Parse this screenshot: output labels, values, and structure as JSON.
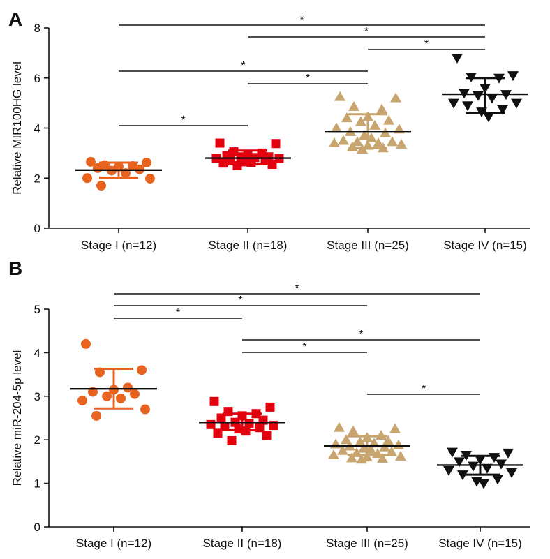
{
  "chart_data": [
    {
      "panel_label": "A",
      "type": "scatter",
      "ylabel": "Relative MIR100HG level",
      "ylim": [
        0,
        8
      ],
      "yticks": [
        "0",
        "2",
        "4",
        "6",
        "8"
      ],
      "categories": [
        "Stage I (n=12)",
        "Stage II (n=18)",
        "Stage III (n=25)",
        "Stage IV (n=15)"
      ],
      "series": [
        {
          "marker": "circle",
          "color": "#E8641E",
          "mean": 2.32,
          "sd_low": 2.02,
          "sd_high": 2.62,
          "points": [
            2.65,
            2.62,
            2.52,
            2.48,
            2.45,
            2.4,
            2.35,
            2.3,
            2.2,
            2.0,
            1.98,
            1.7
          ]
        },
        {
          "marker": "square",
          "color": "#E3000F",
          "mean": 2.8,
          "sd_low": 2.55,
          "sd_high": 3.1,
          "points": [
            3.4,
            3.38,
            3.05,
            3.0,
            2.95,
            2.9,
            2.85,
            2.85,
            2.82,
            2.8,
            2.78,
            2.75,
            2.7,
            2.65,
            2.62,
            2.6,
            2.55,
            2.5
          ]
        },
        {
          "marker": "triangle-up",
          "color": "#C8A46E",
          "mean": 3.87,
          "sd_low": 3.2,
          "sd_high": 4.55,
          "points": [
            5.25,
            5.2,
            4.85,
            4.75,
            4.45,
            4.4,
            4.3,
            4.25,
            4.1,
            4.0,
            3.95,
            3.85,
            3.8,
            3.7,
            3.6,
            3.5,
            3.45,
            3.45,
            3.4,
            3.4,
            3.35,
            3.3,
            3.25,
            3.2,
            3.15
          ]
        },
        {
          "marker": "triangle-down",
          "color": "#111111",
          "mean": 5.35,
          "sd_low": 4.6,
          "sd_high": 6.0,
          "points": [
            6.8,
            6.1,
            6.05,
            6.0,
            5.6,
            5.4,
            5.35,
            5.3,
            5.2,
            5.0,
            5.0,
            4.9,
            4.75,
            4.65,
            4.45
          ]
        }
      ],
      "significance": [
        {
          "from": 0,
          "to": 3,
          "label": "*"
        },
        {
          "from": 1,
          "to": 3,
          "label": "*"
        },
        {
          "from": 2,
          "to": 3,
          "label": "*"
        },
        {
          "from": 0,
          "to": 2,
          "label": "*"
        },
        {
          "from": 1,
          "to": 2,
          "label": "*"
        },
        {
          "from": 0,
          "to": 1,
          "label": "*"
        }
      ]
    },
    {
      "panel_label": "B",
      "type": "scatter",
      "ylabel": "Relative miR-204-5p level",
      "ylim": [
        0,
        5
      ],
      "yticks": [
        "0",
        "1",
        "2",
        "3",
        "4",
        "5"
      ],
      "categories": [
        "Stage I (n=12)",
        "Stage II (n=18)",
        "Stage III (n=25)",
        "Stage IV (n=15)"
      ],
      "series": [
        {
          "marker": "circle",
          "color": "#E8641E",
          "mean": 3.17,
          "sd_low": 2.72,
          "sd_high": 3.63,
          "points": [
            4.2,
            3.6,
            3.55,
            3.2,
            3.15,
            3.1,
            3.05,
            3.0,
            2.95,
            2.9,
            2.7,
            2.55
          ]
        },
        {
          "marker": "square",
          "color": "#E3000F",
          "mean": 2.4,
          "sd_low": 2.22,
          "sd_high": 2.6,
          "points": [
            2.88,
            2.75,
            2.65,
            2.6,
            2.55,
            2.5,
            2.45,
            2.4,
            2.38,
            2.35,
            2.33,
            2.3,
            2.28,
            2.25,
            2.2,
            2.15,
            2.1,
            1.98
          ]
        },
        {
          "marker": "triangle-up",
          "color": "#C8A46E",
          "mean": 1.86,
          "sd_low": 1.65,
          "sd_high": 2.08,
          "points": [
            2.28,
            2.25,
            2.2,
            2.1,
            2.05,
            2.0,
            1.98,
            1.95,
            1.92,
            1.9,
            1.88,
            1.85,
            1.83,
            1.8,
            1.78,
            1.75,
            1.72,
            1.7,
            1.68,
            1.65,
            1.62,
            1.6,
            1.58,
            1.57,
            1.55
          ]
        },
        {
          "marker": "triangle-down",
          "color": "#111111",
          "mean": 1.42,
          "sd_low": 1.2,
          "sd_high": 1.63,
          "points": [
            1.72,
            1.7,
            1.65,
            1.6,
            1.55,
            1.5,
            1.45,
            1.4,
            1.35,
            1.3,
            1.25,
            1.2,
            1.1,
            1.05,
            1.0
          ]
        }
      ],
      "significance": [
        {
          "from": 0,
          "to": 3,
          "label": "*"
        },
        {
          "from": 0,
          "to": 2,
          "label": "*"
        },
        {
          "from": 0,
          "to": 1,
          "label": "*"
        },
        {
          "from": 1,
          "to": 3,
          "label": "*"
        },
        {
          "from": 1,
          "to": 2,
          "label": "*"
        },
        {
          "from": 2,
          "to": 3,
          "label": "*"
        }
      ]
    }
  ]
}
